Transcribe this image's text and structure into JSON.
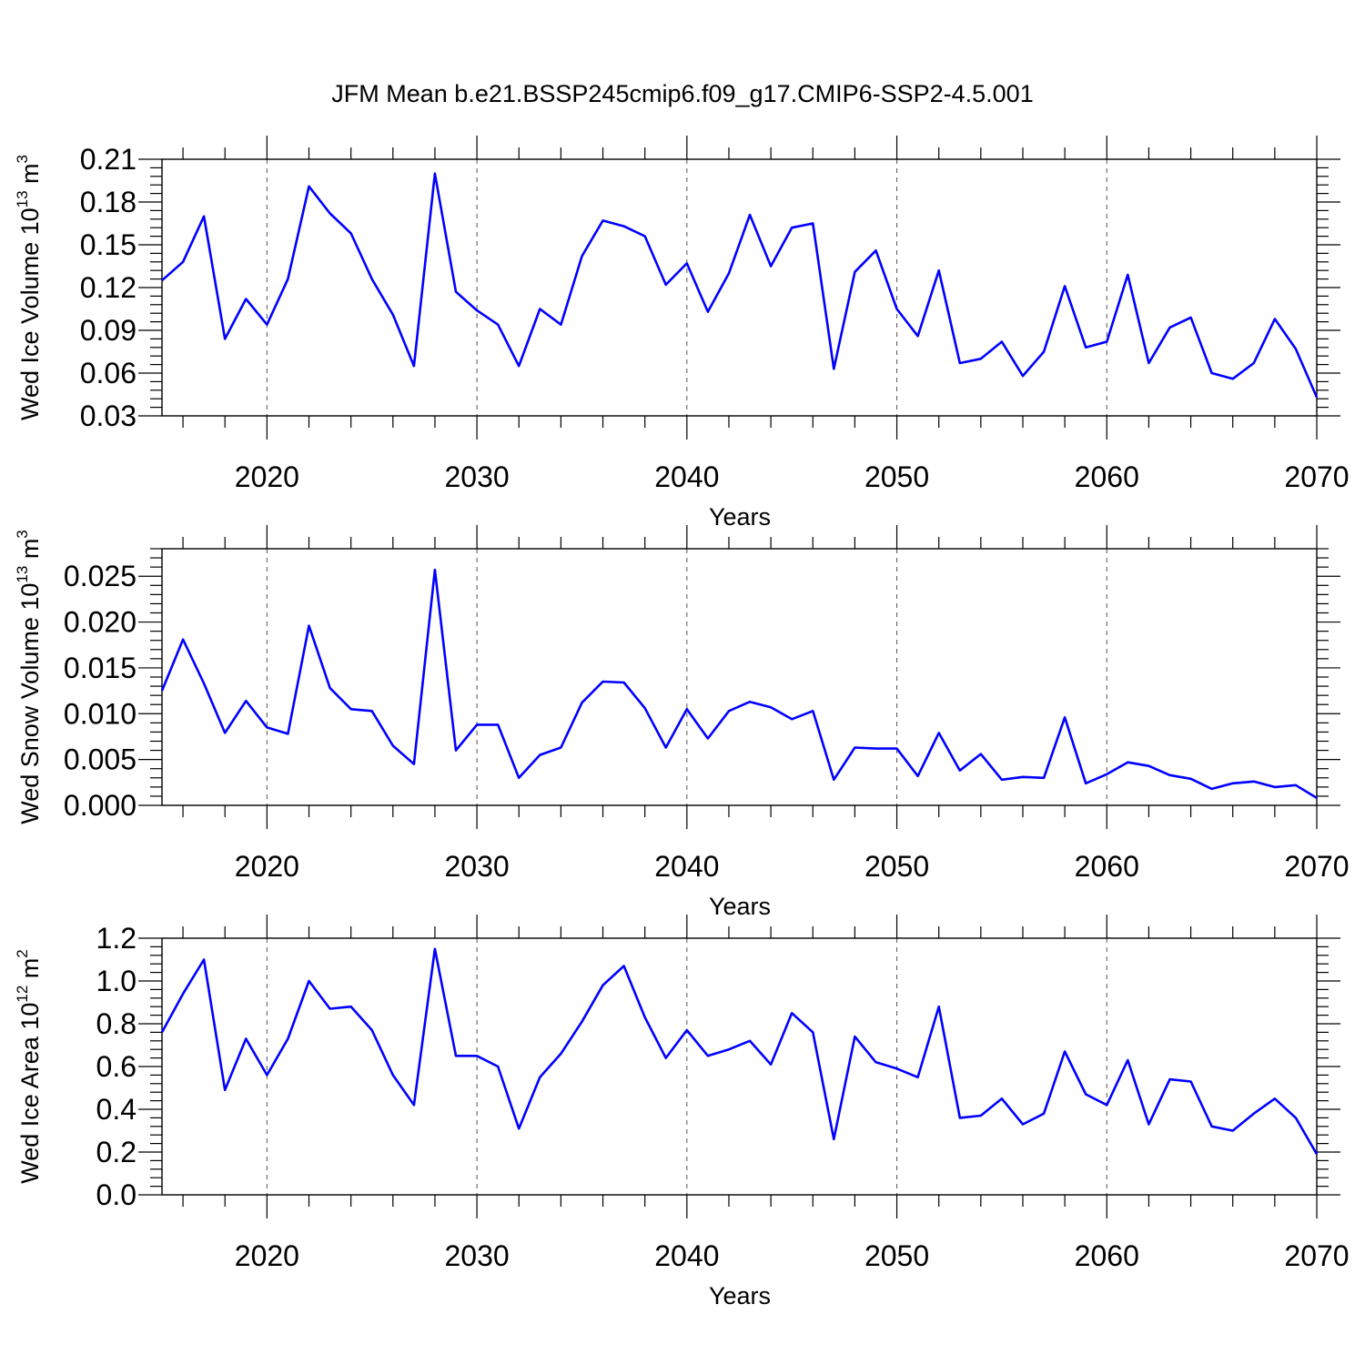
{
  "title": "JFM Mean b.e21.BSSP245cmip6.f09_g17.CMIP6-SSP2-4.5.001",
  "line_color": "#0000ff",
  "chart_data": [
    {
      "type": "line",
      "ylabel_base": "Wed Ice Volume 10",
      "ylabel_exp": "13",
      "ylabel_unit": " m",
      "ylabel_unit_exp": "3",
      "xlabel": "Years",
      "xlim": [
        2015,
        2070
      ],
      "ylim": [
        0.03,
        0.21
      ],
      "yticks": [
        0.03,
        0.06,
        0.09,
        0.12,
        0.15,
        0.18,
        0.21
      ],
      "ytick_labels": [
        "0.03",
        "0.06",
        "0.09",
        "0.12",
        "0.15",
        "0.18",
        "0.21"
      ],
      "xticks": [
        2020,
        2030,
        2040,
        2050,
        2060,
        2070
      ],
      "xtick_labels": [
        "2020",
        "2030",
        "2040",
        "2050",
        "2060",
        "2070"
      ],
      "grid": "dashed vertical at major x ticks",
      "x": [
        2015,
        2016,
        2017,
        2018,
        2019,
        2020,
        2021,
        2022,
        2023,
        2024,
        2025,
        2026,
        2027,
        2028,
        2029,
        2030,
        2031,
        2032,
        2033,
        2034,
        2035,
        2036,
        2037,
        2038,
        2039,
        2040,
        2041,
        2042,
        2043,
        2044,
        2045,
        2046,
        2047,
        2048,
        2049,
        2050,
        2051,
        2052,
        2053,
        2054,
        2055,
        2056,
        2057,
        2058,
        2059,
        2060,
        2061,
        2062,
        2063,
        2064,
        2065,
        2066,
        2067,
        2068,
        2069,
        2070
      ],
      "values": [
        0.125,
        0.138,
        0.17,
        0.084,
        0.112,
        0.094,
        0.126,
        0.191,
        0.172,
        0.158,
        0.126,
        0.101,
        0.065,
        0.2,
        0.117,
        0.104,
        0.094,
        0.065,
        0.105,
        0.094,
        0.142,
        0.167,
        0.163,
        0.156,
        0.122,
        0.137,
        0.103,
        0.13,
        0.171,
        0.135,
        0.162,
        0.165,
        0.063,
        0.131,
        0.146,
        0.105,
        0.086,
        0.132,
        0.067,
        0.07,
        0.082,
        0.058,
        0.075,
        0.121,
        0.078,
        0.082,
        0.129,
        0.067,
        0.092,
        0.099,
        0.06,
        0.056,
        0.067,
        0.098,
        0.077,
        0.043
      ]
    },
    {
      "type": "line",
      "ylabel_base": "Wed Snow Volume 10",
      "ylabel_exp": "13",
      "ylabel_unit": " m",
      "ylabel_unit_exp": "3",
      "xlabel": "Years",
      "xlim": [
        2015,
        2070
      ],
      "ylim": [
        0.0,
        0.028
      ],
      "yticks": [
        0.0,
        0.005,
        0.01,
        0.015,
        0.02,
        0.025
      ],
      "ytick_labels": [
        "0.000",
        "0.005",
        "0.010",
        "0.015",
        "0.020",
        "0.025"
      ],
      "xticks": [
        2020,
        2030,
        2040,
        2050,
        2060,
        2070
      ],
      "xtick_labels": [
        "2020",
        "2030",
        "2040",
        "2050",
        "2060",
        "2070"
      ],
      "grid": "dashed vertical at major x ticks",
      "x": [
        2015,
        2016,
        2017,
        2018,
        2019,
        2020,
        2021,
        2022,
        2023,
        2024,
        2025,
        2026,
        2027,
        2028,
        2029,
        2030,
        2031,
        2032,
        2033,
        2034,
        2035,
        2036,
        2037,
        2038,
        2039,
        2040,
        2041,
        2042,
        2043,
        2044,
        2045,
        2046,
        2047,
        2048,
        2049,
        2050,
        2051,
        2052,
        2053,
        2054,
        2055,
        2056,
        2057,
        2058,
        2059,
        2060,
        2061,
        2062,
        2063,
        2064,
        2065,
        2066,
        2067,
        2068,
        2069,
        2070
      ],
      "values": [
        0.0125,
        0.0181,
        0.0133,
        0.0079,
        0.0114,
        0.0085,
        0.0078,
        0.0196,
        0.0128,
        0.0105,
        0.0103,
        0.0065,
        0.0045,
        0.0257,
        0.006,
        0.0088,
        0.0088,
        0.003,
        0.0055,
        0.0063,
        0.0112,
        0.0135,
        0.0134,
        0.0106,
        0.0063,
        0.0105,
        0.0073,
        0.0103,
        0.0113,
        0.0107,
        0.0094,
        0.0103,
        0.0028,
        0.0063,
        0.0062,
        0.0062,
        0.0032,
        0.0079,
        0.0038,
        0.0056,
        0.0028,
        0.0031,
        0.003,
        0.0096,
        0.0024,
        0.0034,
        0.0047,
        0.0043,
        0.0033,
        0.0029,
        0.0018,
        0.0024,
        0.0026,
        0.002,
        0.0022,
        0.0008
      ]
    },
    {
      "type": "line",
      "ylabel_base": "Wed Ice Area 10",
      "ylabel_exp": "12",
      "ylabel_unit": " m",
      "ylabel_unit_exp": "2",
      "xlabel": "Years",
      "xlim": [
        2015,
        2070
      ],
      "ylim": [
        0.0,
        1.2
      ],
      "yticks": [
        0.0,
        0.2,
        0.4,
        0.6,
        0.8,
        1.0,
        1.2
      ],
      "ytick_labels": [
        "0.0",
        "0.2",
        "0.4",
        "0.6",
        "0.8",
        "1.0",
        "1.2"
      ],
      "xticks": [
        2020,
        2030,
        2040,
        2050,
        2060,
        2070
      ],
      "xtick_labels": [
        "2020",
        "2030",
        "2040",
        "2050",
        "2060",
        "2070"
      ],
      "grid": "dashed vertical at major x ticks",
      "x": [
        2015,
        2016,
        2017,
        2018,
        2019,
        2020,
        2021,
        2022,
        2023,
        2024,
        2025,
        2026,
        2027,
        2028,
        2029,
        2030,
        2031,
        2032,
        2033,
        2034,
        2035,
        2036,
        2037,
        2038,
        2039,
        2040,
        2041,
        2042,
        2043,
        2044,
        2045,
        2046,
        2047,
        2048,
        2049,
        2050,
        2051,
        2052,
        2053,
        2054,
        2055,
        2056,
        2057,
        2058,
        2059,
        2060,
        2061,
        2062,
        2063,
        2064,
        2065,
        2066,
        2067,
        2068,
        2069,
        2070
      ],
      "values": [
        0.76,
        0.94,
        1.1,
        0.49,
        0.73,
        0.56,
        0.73,
        1.0,
        0.87,
        0.88,
        0.77,
        0.56,
        0.42,
        1.15,
        0.65,
        0.65,
        0.6,
        0.31,
        0.55,
        0.66,
        0.81,
        0.98,
        1.07,
        0.83,
        0.64,
        0.77,
        0.65,
        0.68,
        0.72,
        0.61,
        0.85,
        0.76,
        0.26,
        0.74,
        0.62,
        0.59,
        0.55,
        0.88,
        0.36,
        0.37,
        0.45,
        0.33,
        0.38,
        0.67,
        0.47,
        0.42,
        0.63,
        0.33,
        0.54,
        0.53,
        0.32,
        0.3,
        0.38,
        0.45,
        0.36,
        0.19
      ]
    }
  ]
}
